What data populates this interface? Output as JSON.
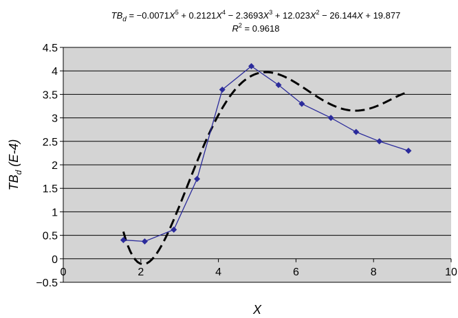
{
  "chart_data": {
    "type": "scatter",
    "equation": {
      "lead": "TB",
      "lead_sub": "d",
      "mid": " = −0.0071",
      "x5": "X",
      "p5": "5",
      "t4": "  + 0.2121",
      "x4": "X",
      "p4": "4",
      "t3": "  − 2.3693",
      "x3": "X",
      "p3": "3",
      "t2": "  + 12.023",
      "x2": "X",
      "p2": "2",
      "t1": " − 26.144",
      "x1": "X",
      "t0": " + 19.877"
    },
    "r2": {
      "r": "R",
      "sup": "2",
      "value": "  = 0.9618"
    },
    "xlabel": "X",
    "ylabel": {
      "main": "TB",
      "sub": "d",
      "rest": " (E-4)"
    },
    "xlim": [
      0,
      10
    ],
    "ylim": [
      -0.5,
      4.5
    ],
    "x_ticks": [
      "0",
      "2",
      "4",
      "6",
      "8",
      "10"
    ],
    "y_ticks": [
      "−0.5",
      "0",
      "0.5",
      "1",
      "1.5",
      "2",
      "2.5",
      "3",
      "3.5",
      "4",
      "4.5"
    ],
    "grid": "horizontal",
    "plot_background": "#d4d4d4",
    "series": [
      {
        "color": "#2b2b9b",
        "marker": "diamond",
        "x": [
          1.55,
          2.1,
          2.85,
          3.45,
          4.1,
          4.85,
          5.55,
          6.15,
          6.9,
          7.55,
          8.15,
          8.9
        ],
        "y": [
          0.4,
          0.37,
          0.62,
          1.7,
          3.6,
          4.1,
          3.7,
          3.3,
          3.0,
          2.7,
          2.5,
          2.3
        ]
      },
      {
        "color": "#000000",
        "style": "dashed",
        "trendline": "polynomial",
        "order": 5,
        "coefficients": [
          -0.0071,
          0.2121,
          -2.3693,
          12.023,
          -26.144,
          19.877
        ],
        "x_range": [
          1.55,
          8.9
        ]
      }
    ]
  }
}
